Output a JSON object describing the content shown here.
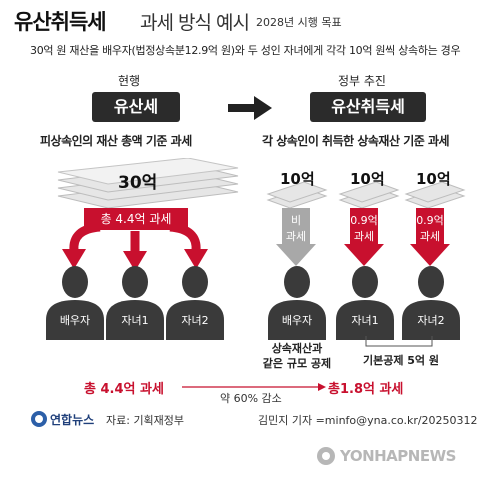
{
  "title": {
    "main": "유산취득세",
    "sub": "과세 방식 예시",
    "note": "2028년 시행 목표"
  },
  "subtitle": "30억 원 재산을 배우자(법정상속분12.9억 원)와 두 성인 자녀에게 각각 10억 원씩 상속하는 경우",
  "left": {
    "label": "현행",
    "tax_name": "유산세",
    "basis": "피상속인의 재산 총액 기준 과세",
    "money": "30억",
    "tax_box": "총 4.4억 과세",
    "persons": [
      "배우자",
      "자녀1",
      "자녀2"
    ]
  },
  "right": {
    "label": "정부 추진",
    "tax_name": "유산취득세",
    "basis": "각 상속인이 취득한 상속재산 기준 과세",
    "money": [
      "10억",
      "10억",
      "10억"
    ],
    "taxes": [
      {
        "line1": "비",
        "line2": "과세",
        "color": "#a8a8a8"
      },
      {
        "line1": "0.9억",
        "line2": "과세",
        "color": "#c8102e"
      },
      {
        "line1": "0.9억",
        "line2": "과세",
        "color": "#c8102e"
      }
    ],
    "persons": [
      "배우자",
      "자녀1",
      "자녀2"
    ],
    "spouse_note": [
      "상속재산과",
      "같은 규모 공제"
    ],
    "child_note": "기본공제 5억 원"
  },
  "bottom": {
    "left_total": "총 4.4억 과세",
    "reduction": "약 60% 감소",
    "right_total": "총1.8억 과세"
  },
  "footer": {
    "logo": "연합뉴스",
    "source": "자료: 기획재정부",
    "credit": "김민지 기자 =minfo@yna.co.kr/20250312",
    "watermark": "YONHAPNEWS"
  },
  "colors": {
    "accent": "#c8102e",
    "dark": "#2b2b2b",
    "gray": "#a8a8a8"
  }
}
